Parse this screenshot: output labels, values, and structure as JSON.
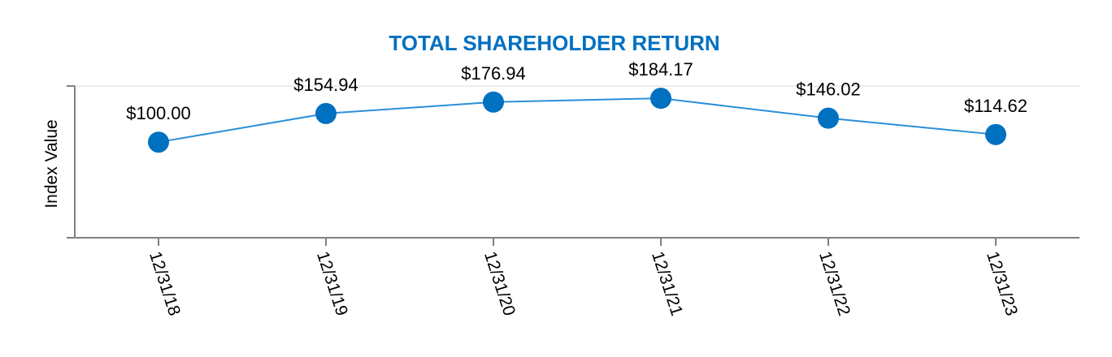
{
  "chart_data": {
    "type": "line",
    "title": "TOTAL SHAREHOLDER RETURN",
    "xlabel": "",
    "ylabel": "Index Value",
    "categories": [
      "12/31/18",
      "12/31/19",
      "12/31/20",
      "12/31/21",
      "12/31/22",
      "12/31/23"
    ],
    "series": [
      {
        "values": [
          100.0,
          154.94,
          176.94,
          184.17,
          146.02,
          114.62
        ],
        "data_labels": [
          "$100.00",
          "$154.94",
          "$176.94",
          "$184.17",
          "$146.02",
          "$114.62"
        ]
      }
    ],
    "ylim": [
      0,
      200
    ],
    "grid": true,
    "legend": "none",
    "colors": {
      "title": "#0070c0",
      "line": "#2a8fd8",
      "marker": "#0070c0",
      "axis": "#808080",
      "grid": "#d9d9d9"
    }
  }
}
